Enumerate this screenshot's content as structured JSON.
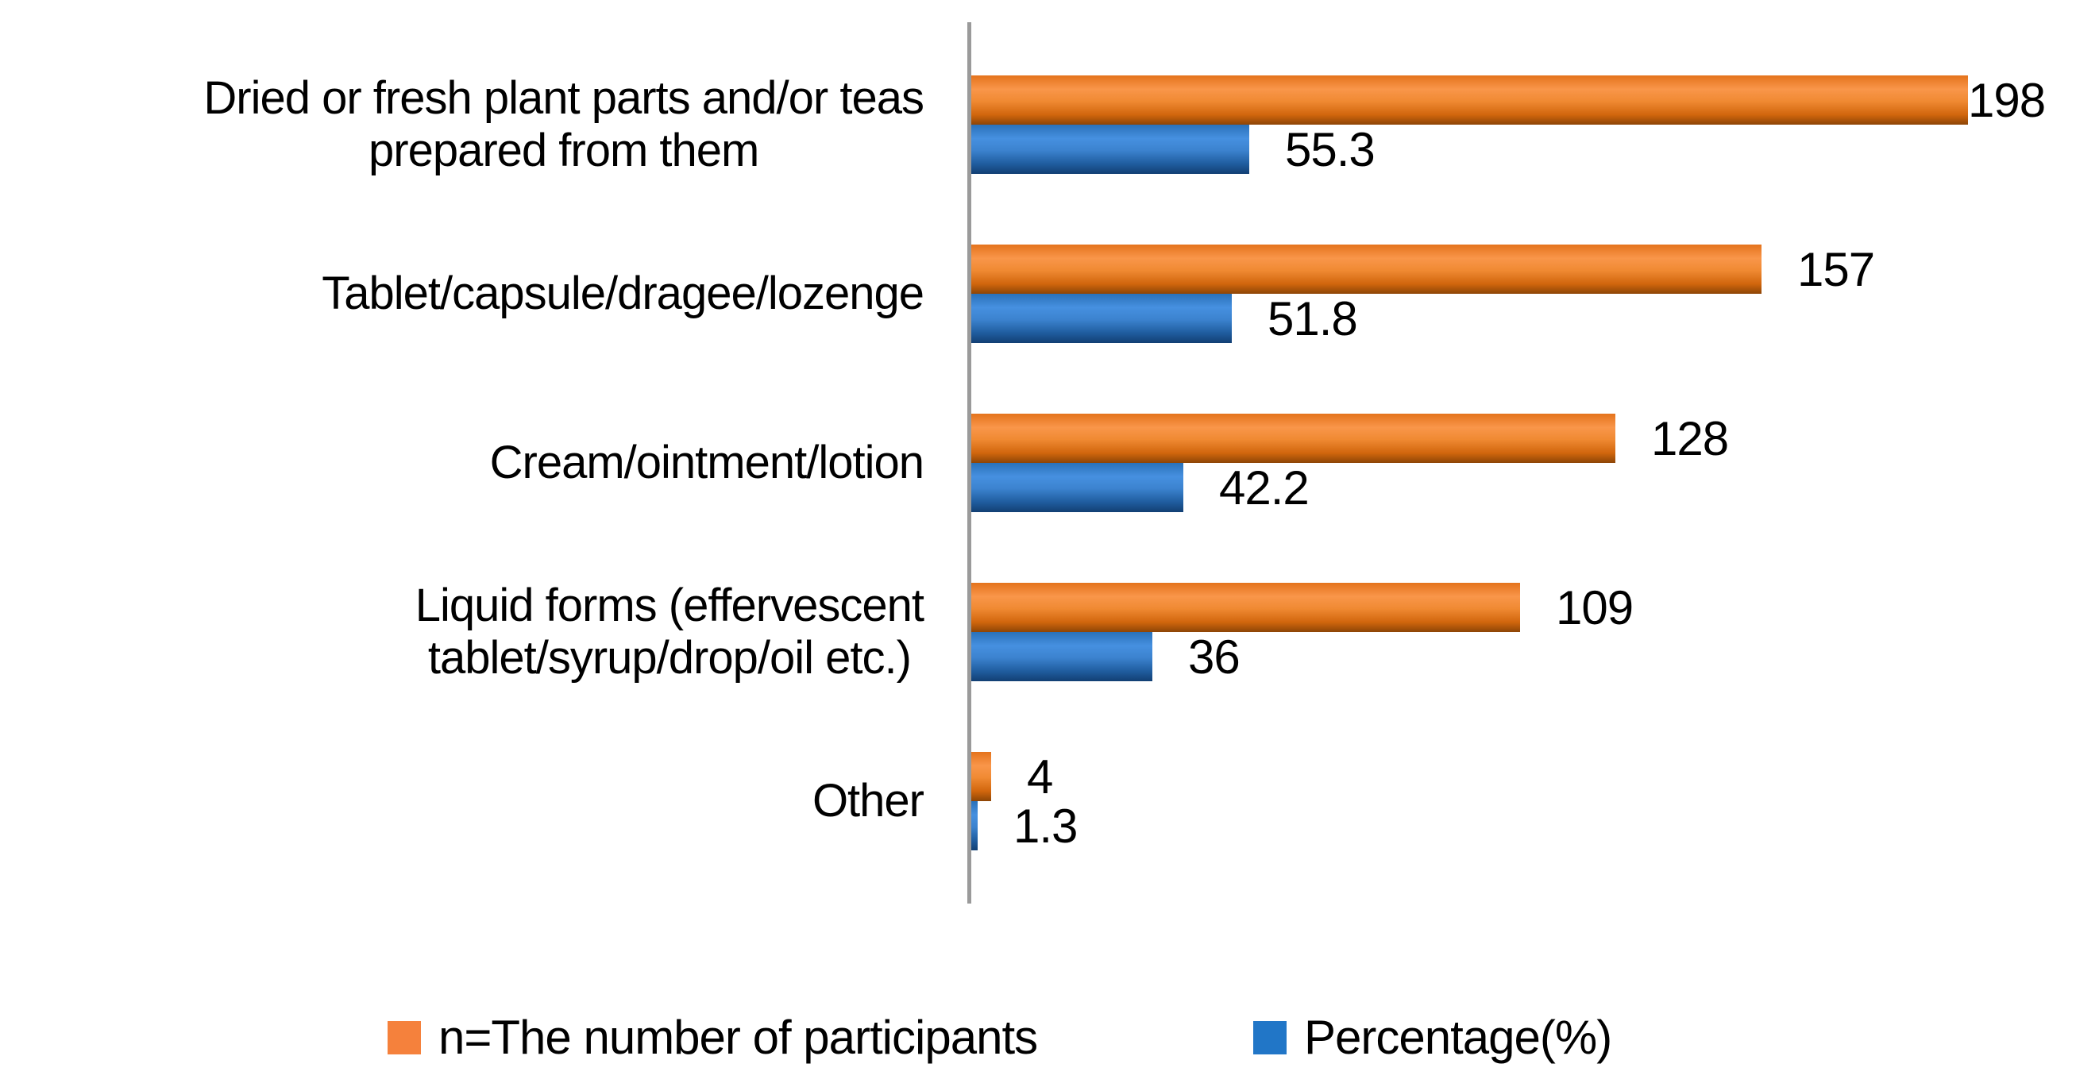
{
  "chart_data": {
    "type": "bar",
    "orientation": "horizontal",
    "title": "",
    "xlabel": "",
    "ylabel": "",
    "grid": false,
    "legend_position": "bottom",
    "xlim": [
      0,
      220
    ],
    "axis_color": "#9a9a9a",
    "text_color": "#000000",
    "categories": [
      "Dried or fresh plant parts and/or teas prepared from them",
      "Tablet/capsule/dragee/lozenge",
      "Cream/ointment/lotion",
      "Liquid forms (effervescent tablet/syrup/drop/oil etc.)",
      "Other"
    ],
    "category_lines": [
      [
        "Dried or fresh plant parts and/or teas",
        "prepared from them"
      ],
      [
        "Tablet/capsule/dragee/lozenge"
      ],
      [
        "Cream/ointment/lotion"
      ],
      [
        "Liquid forms (effervescent",
        "tablet/syrup/drop/oil etc.)"
      ],
      [
        "Other"
      ]
    ],
    "series": [
      {
        "name": "n=The number of participants",
        "color": "#f5813c",
        "gradient": [
          "#e4731c",
          "#f9964a",
          "#f08a33",
          "#d1660d",
          "#8d4506"
        ],
        "values": [
          198,
          157,
          128,
          109,
          4
        ]
      },
      {
        "name": "Percentage(%)",
        "color": "#2176c7",
        "gradient": [
          "#2a71b9",
          "#4690e0",
          "#3c83cf",
          "#1f5c9e",
          "#123f73"
        ],
        "values": [
          55.3,
          51.8,
          42.2,
          36,
          1.3
        ]
      }
    ]
  }
}
